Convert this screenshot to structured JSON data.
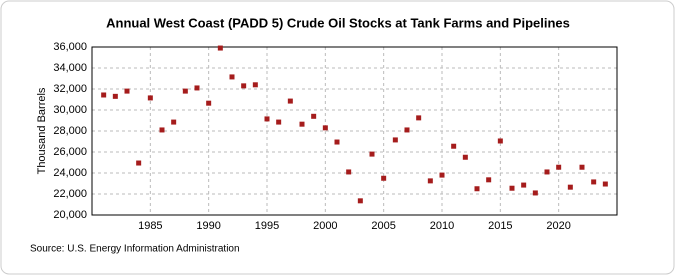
{
  "chart_data": {
    "type": "scatter",
    "title": "Annual West Coast (PADD 5) Crude Oil Stocks at Tank Farms and Pipelines",
    "y_label": "Thousand Barrels",
    "source": "Source: U.S. Energy Information Administration",
    "color": "#a51c1c",
    "grid": true,
    "x": [
      1981,
      1982,
      1983,
      1984,
      1985,
      1986,
      1987,
      1988,
      1989,
      1990,
      1991,
      1992,
      1993,
      1994,
      1995,
      1996,
      1997,
      1998,
      1999,
      2000,
      2001,
      2002,
      2003,
      2004,
      2005,
      2006,
      2007,
      2008,
      2009,
      2010,
      2011,
      2012,
      2013,
      2014,
      2015,
      2016,
      2017,
      2018,
      2019,
      2020,
      2021,
      2022,
      2023,
      2024
    ],
    "values": [
      31430,
      31300,
      31800,
      24950,
      31150,
      28100,
      28850,
      31800,
      32100,
      30650,
      35900,
      33150,
      32300,
      32400,
      29150,
      28850,
      30850,
      28650,
      29400,
      28300,
      26950,
      24100,
      21350,
      25800,
      23500,
      27150,
      28100,
      29250,
      23250,
      23800,
      26550,
      25500,
      22500,
      23350,
      27050,
      22550,
      22850,
      22100,
      24100,
      24550,
      22650,
      24550,
      23150,
      22950
    ],
    "xlim": [
      1980,
      2025
    ],
    "xticks": [
      1985,
      1990,
      1995,
      2000,
      2005,
      2010,
      2015,
      2020
    ],
    "ylim": [
      20000,
      36000
    ],
    "yticks": [
      {
        "value": 20000,
        "label": "20,000"
      },
      {
        "value": 22000,
        "label": "22,000"
      },
      {
        "value": 24000,
        "label": "24,000"
      },
      {
        "value": 26000,
        "label": "26,000"
      },
      {
        "value": 28000,
        "label": "28,000"
      },
      {
        "value": 30000,
        "label": "30,000"
      },
      {
        "value": 32000,
        "label": "32,000"
      },
      {
        "value": 34000,
        "label": "34,000"
      },
      {
        "value": 36000,
        "label": "36,000"
      }
    ]
  }
}
